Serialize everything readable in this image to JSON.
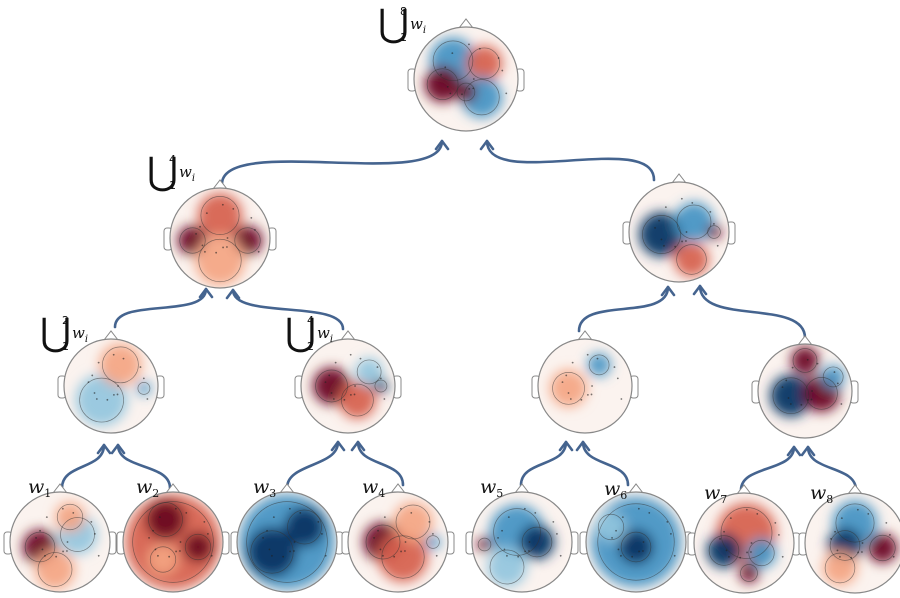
{
  "union_labels": [
    {
      "lower": "1",
      "upper": "8",
      "var": "w",
      "sub": "i"
    },
    {
      "lower": "1",
      "upper": "4",
      "var": "w",
      "sub": "i"
    },
    {
      "lower": "1",
      "upper": "2",
      "var": "w",
      "sub": "i"
    },
    {
      "lower": "2",
      "upper": "4",
      "var": "w",
      "sub": "i"
    }
  ],
  "leaf_labels": [
    {
      "var": "w",
      "sub": "1"
    },
    {
      "var": "w",
      "sub": "2"
    },
    {
      "var": "w",
      "sub": "3"
    },
    {
      "var": "w",
      "sub": "4"
    },
    {
      "var": "w",
      "sub": "5"
    },
    {
      "var": "w",
      "sub": "6"
    },
    {
      "var": "w",
      "sub": "7"
    },
    {
      "var": "w",
      "sub": "8"
    }
  ],
  "colors": {
    "arrow": "#45648f",
    "red_dark": "#67001f",
    "red_mid": "#d6604d",
    "red_light": "#f4a582",
    "blue_dark": "#053061",
    "blue_mid": "#4393c3",
    "blue_light": "#92c5de",
    "head_outline": "#888888"
  },
  "maps": [
    {
      "id": "root",
      "blobs": [
        {
          "c": "blue_mid",
          "dx": -0.25,
          "dy": -0.35,
          "r": 0.45
        },
        {
          "c": "red_dark",
          "dx": -0.45,
          "dy": 0.1,
          "r": 0.35
        },
        {
          "c": "red_mid",
          "dx": 0.35,
          "dy": -0.3,
          "r": 0.35
        },
        {
          "c": "blue_mid",
          "dx": 0.3,
          "dy": 0.35,
          "r": 0.4
        },
        {
          "c": "red_dark",
          "dx": 0.0,
          "dy": 0.25,
          "r": 0.2
        }
      ]
    },
    {
      "id": "left-4",
      "blobs": [
        {
          "c": "red_dark",
          "dx": -0.55,
          "dy": 0.05,
          "r": 0.3
        },
        {
          "c": "red_dark",
          "dx": 0.55,
          "dy": 0.05,
          "r": 0.3
        },
        {
          "c": "red_mid",
          "dx": 0.0,
          "dy": -0.45,
          "r": 0.45
        },
        {
          "c": "red_light",
          "dx": 0.0,
          "dy": 0.45,
          "r": 0.5
        }
      ]
    },
    {
      "id": "right-4",
      "blobs": [
        {
          "c": "blue_dark",
          "dx": -0.35,
          "dy": 0.05,
          "r": 0.45
        },
        {
          "c": "blue_mid",
          "dx": 0.3,
          "dy": -0.2,
          "r": 0.4
        },
        {
          "c": "red_mid",
          "dx": 0.25,
          "dy": 0.55,
          "r": 0.35
        },
        {
          "c": "red_dark",
          "dx": 0.7,
          "dy": 0.0,
          "r": 0.15
        }
      ]
    },
    {
      "id": "left-2",
      "blobs": [
        {
          "c": "blue_light",
          "dx": -0.2,
          "dy": 0.3,
          "r": 0.55
        },
        {
          "c": "red_light",
          "dx": 0.2,
          "dy": -0.45,
          "r": 0.45
        },
        {
          "c": "blue_mid",
          "dx": 0.7,
          "dy": 0.05,
          "r": 0.15
        }
      ]
    },
    {
      "id": "mid-2",
      "blobs": [
        {
          "c": "red_dark",
          "dx": -0.35,
          "dy": 0.0,
          "r": 0.4
        },
        {
          "c": "red_mid",
          "dx": 0.2,
          "dy": 0.3,
          "r": 0.4
        },
        {
          "c": "blue_light",
          "dx": 0.45,
          "dy": -0.3,
          "r": 0.3
        },
        {
          "c": "blue_dark",
          "dx": 0.7,
          "dy": 0.0,
          "r": 0.15
        }
      ]
    },
    {
      "id": "right-2a",
      "blobs": [
        {
          "c": "red_light",
          "dx": -0.35,
          "dy": 0.05,
          "r": 0.4
        },
        {
          "c": "blue_mid",
          "dx": 0.3,
          "dy": -0.45,
          "r": 0.25
        }
      ]
    },
    {
      "id": "right-2b",
      "blobs": [
        {
          "c": "blue_dark",
          "dx": -0.3,
          "dy": 0.1,
          "r": 0.45
        },
        {
          "c": "red_dark",
          "dx": 0.35,
          "dy": 0.05,
          "r": 0.4
        },
        {
          "c": "red_dark",
          "dx": 0.0,
          "dy": -0.65,
          "r": 0.3
        },
        {
          "c": "blue_mid",
          "dx": 0.6,
          "dy": -0.3,
          "r": 0.25
        }
      ]
    },
    {
      "id": "w1",
      "blobs": [
        {
          "c": "red_dark",
          "dx": -0.4,
          "dy": 0.1,
          "r": 0.35
        },
        {
          "c": "red_light",
          "dx": -0.1,
          "dy": 0.55,
          "r": 0.4
        },
        {
          "c": "blue_light",
          "dx": 0.35,
          "dy": -0.15,
          "r": 0.4
        },
        {
          "c": "red_light",
          "dx": 0.2,
          "dy": -0.5,
          "r": 0.3
        }
      ]
    },
    {
      "id": "w2",
      "blobs": [
        {
          "c": "red_mid",
          "dx": 0.0,
          "dy": 0.0,
          "r": 0.95
        },
        {
          "c": "red_dark",
          "dx": -0.15,
          "dy": -0.45,
          "r": 0.4
        },
        {
          "c": "red_dark",
          "dx": 0.5,
          "dy": 0.1,
          "r": 0.3
        },
        {
          "c": "red_light",
          "dx": -0.2,
          "dy": 0.35,
          "r": 0.3
        }
      ]
    },
    {
      "id": "w3",
      "blobs": [
        {
          "c": "blue_mid",
          "dx": 0.0,
          "dy": 0.0,
          "r": 0.95
        },
        {
          "c": "blue_dark",
          "dx": -0.3,
          "dy": 0.2,
          "r": 0.5
        },
        {
          "c": "blue_dark",
          "dx": 0.35,
          "dy": -0.3,
          "r": 0.4
        }
      ]
    },
    {
      "id": "w4",
      "blobs": [
        {
          "c": "red_dark",
          "dx": -0.3,
          "dy": 0.0,
          "r": 0.4
        },
        {
          "c": "red_mid",
          "dx": 0.1,
          "dy": 0.3,
          "r": 0.5
        },
        {
          "c": "red_light",
          "dx": 0.3,
          "dy": -0.4,
          "r": 0.4
        },
        {
          "c": "blue_mid",
          "dx": 0.7,
          "dy": 0.0,
          "r": 0.15
        }
      ]
    },
    {
      "id": "w5",
      "blobs": [
        {
          "c": "blue_mid",
          "dx": -0.1,
          "dy": -0.2,
          "r": 0.55
        },
        {
          "c": "blue_dark",
          "dx": 0.3,
          "dy": 0.0,
          "r": 0.35
        },
        {
          "c": "red_dark",
          "dx": -0.75,
          "dy": 0.05,
          "r": 0.15
        },
        {
          "c": "blue_light",
          "dx": -0.3,
          "dy": 0.5,
          "r": 0.4
        }
      ]
    },
    {
      "id": "w6",
      "blobs": [
        {
          "c": "blue_mid",
          "dx": 0.0,
          "dy": 0.0,
          "r": 0.9
        },
        {
          "c": "blue_dark",
          "dx": 0.0,
          "dy": 0.1,
          "r": 0.35
        },
        {
          "c": "blue_light",
          "dx": -0.5,
          "dy": -0.3,
          "r": 0.3
        }
      ]
    },
    {
      "id": "w7",
      "blobs": [
        {
          "c": "red_mid",
          "dx": 0.05,
          "dy": -0.2,
          "r": 0.6
        },
        {
          "c": "blue_dark",
          "dx": -0.4,
          "dy": 0.15,
          "r": 0.35
        },
        {
          "c": "blue_mid",
          "dx": 0.35,
          "dy": 0.2,
          "r": 0.3
        },
        {
          "c": "red_dark",
          "dx": 0.1,
          "dy": 0.6,
          "r": 0.2
        }
      ]
    },
    {
      "id": "w8",
      "blobs": [
        {
          "c": "blue_mid",
          "dx": 0.0,
          "dy": -0.4,
          "r": 0.45
        },
        {
          "c": "blue_dark",
          "dx": -0.2,
          "dy": 0.05,
          "r": 0.35
        },
        {
          "c": "red_dark",
          "dx": 0.55,
          "dy": 0.1,
          "r": 0.3
        },
        {
          "c": "red_light",
          "dx": -0.3,
          "dy": 0.5,
          "r": 0.35
        }
      ]
    }
  ]
}
